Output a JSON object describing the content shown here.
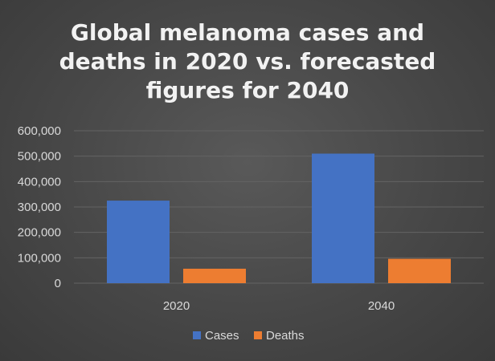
{
  "chart_data": {
    "type": "bar",
    "title": "Global melanoma cases and deaths in 2020 vs. forecasted figures for 2040",
    "title_lines": [
      "Global melanoma cases and",
      "deaths in 2020 vs. forecasted",
      "figures for 2040"
    ],
    "categories": [
      "2020",
      "2040"
    ],
    "series": [
      {
        "name": "Cases",
        "values": [
          325000,
          510000
        ],
        "color": "#4472c4"
      },
      {
        "name": "Deaths",
        "values": [
          57000,
          96000
        ],
        "color": "#ed7d31"
      }
    ],
    "ylim": [
      0,
      600000
    ],
    "yticks": [
      0,
      100000,
      200000,
      300000,
      400000,
      500000,
      600000
    ],
    "ytick_labels": [
      "0",
      "100,000",
      "200,000",
      "300,000",
      "400,000",
      "500,000",
      "600,000"
    ],
    "grid": true,
    "legend_position": "bottom",
    "xlabel": "",
    "ylabel": ""
  },
  "colors": {
    "background": "#474747",
    "gridline": "#636363",
    "axis_text": "#d9d9d9",
    "title_text": "#f2f2f2"
  }
}
